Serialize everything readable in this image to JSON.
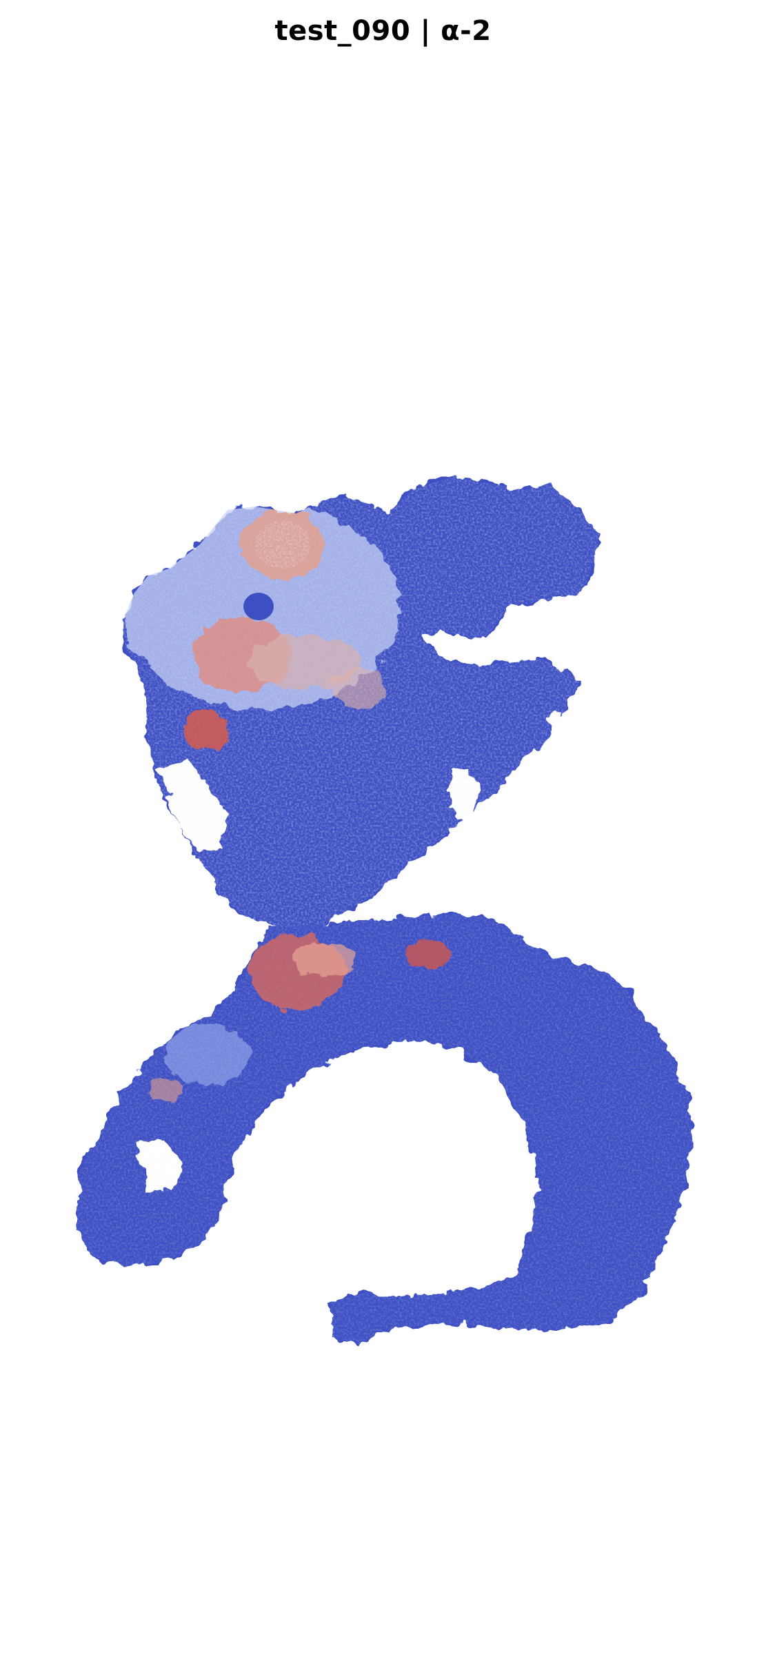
{
  "figure": {
    "title": "test_090 | α-2",
    "colormap": "coolwarm",
    "colors": {
      "background": "#ffffff",
      "low": "#3b4cc0",
      "mid": "#dddddd",
      "high": "#b40426"
    }
  }
}
